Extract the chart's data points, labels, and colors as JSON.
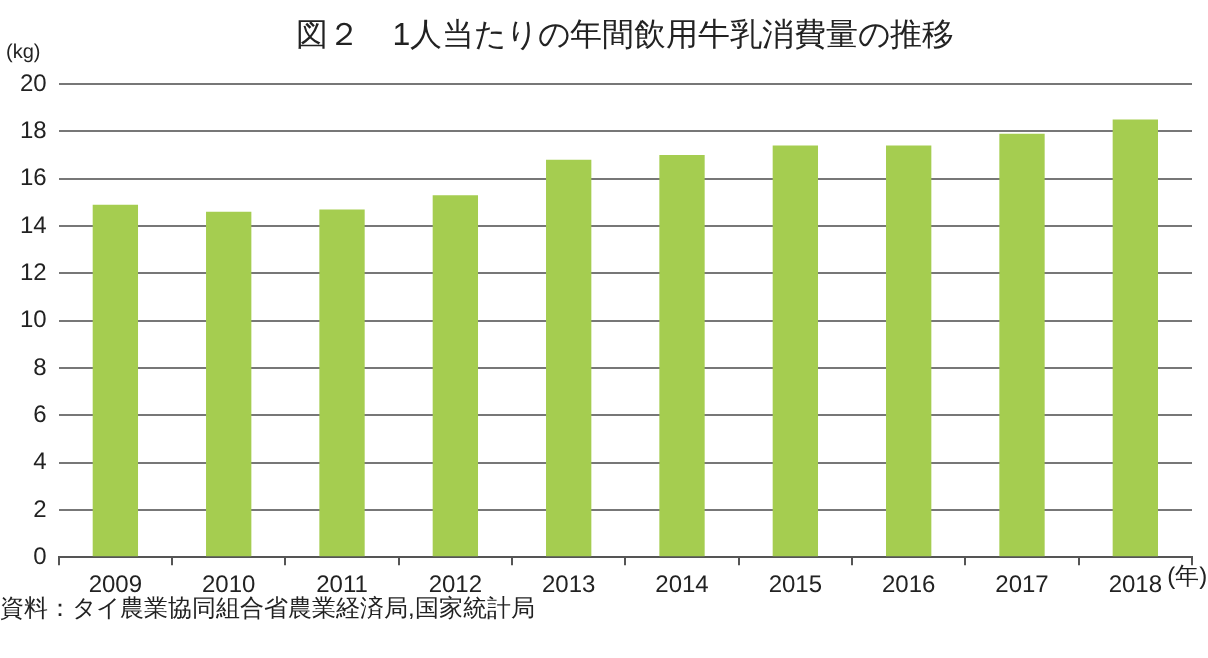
{
  "chart_data": {
    "type": "bar",
    "title": "図２　1人当たりの年間飲用牛乳消費量の推移",
    "ylabel": "(kg)",
    "xlabel": "(年)",
    "categories": [
      "2009",
      "2010",
      "2011",
      "2012",
      "2013",
      "2014",
      "2015",
      "2016",
      "2017",
      "2018"
    ],
    "values": [
      14.9,
      14.6,
      14.7,
      15.3,
      16.8,
      17.0,
      17.4,
      17.4,
      17.9,
      18.5
    ],
    "color": "#a5cd50",
    "ylim": [
      0,
      20
    ],
    "yticks": [
      0,
      2,
      4,
      6,
      8,
      10,
      12,
      14,
      16,
      18,
      20
    ],
    "grid": "y",
    "legend": false,
    "annotations": [
      "資料：タイ農業協同組合省農業経済局,国家統計局"
    ]
  }
}
